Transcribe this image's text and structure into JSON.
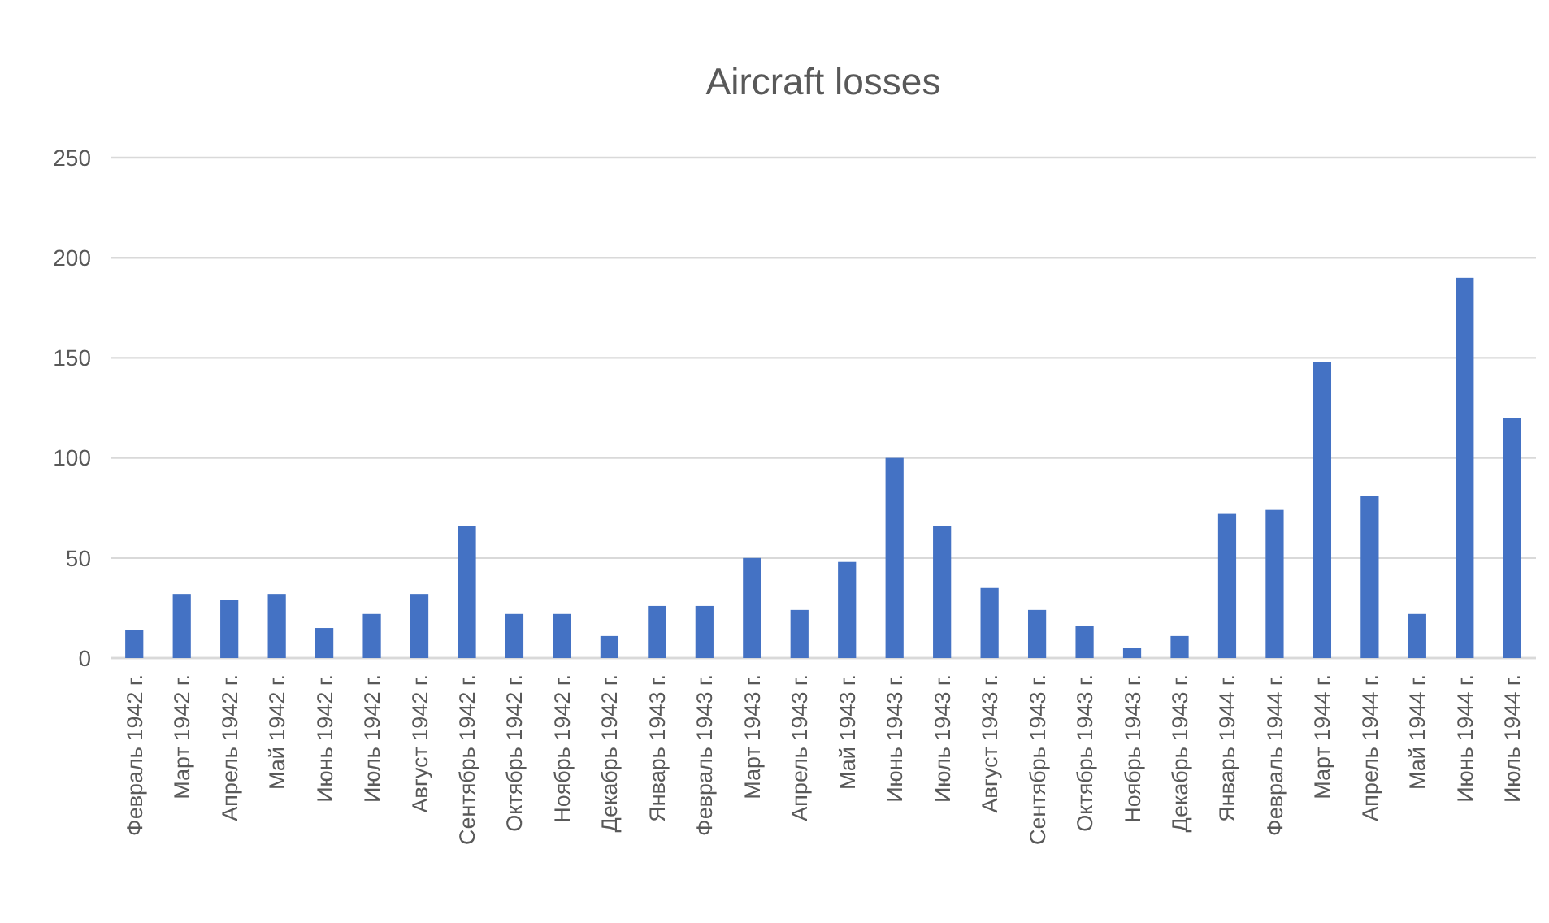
{
  "chart_data": {
    "type": "bar",
    "title": "Aircraft losses",
    "categories": [
      "Февраль 1942 г.",
      "Март 1942 г.",
      "Апрель 1942 г.",
      "Май 1942 г.",
      "Июнь 1942 г.",
      "Июль 1942 г.",
      "Август 1942 г.",
      "Сентябрь 1942 г.",
      "Октябрь 1942 г.",
      "Ноябрь 1942 г.",
      "Декабрь 1942 г.",
      "Январь 1943 г.",
      "Февраль 1943 г.",
      "Март 1943 г.",
      "Апрель 1943 г.",
      "Май 1943 г.",
      "Июнь 1943 г.",
      "Июль 1943 г.",
      "Август 1943 г.",
      "Сентябрь 1943 г.",
      "Октябрь 1943 г.",
      "Ноябрь 1943 г.",
      "Декабрь 1943 г.",
      "Январь 1944 г.",
      "Февраль 1944 г.",
      "Март 1944 г.",
      "Апрель 1944 г.",
      "Май 1944 г.",
      "Июнь 1944 г.",
      "Июль 1944 г."
    ],
    "values": [
      14,
      32,
      29,
      32,
      15,
      22,
      32,
      66,
      22,
      22,
      11,
      26,
      26,
      50,
      24,
      48,
      100,
      66,
      35,
      24,
      16,
      5,
      11,
      72,
      74,
      148,
      81,
      22,
      190,
      120
    ],
    "color": "#4472c4",
    "ylim": [
      0,
      250
    ],
    "yticks": [
      0,
      50,
      100,
      150,
      200,
      250
    ],
    "grid": "y"
  }
}
